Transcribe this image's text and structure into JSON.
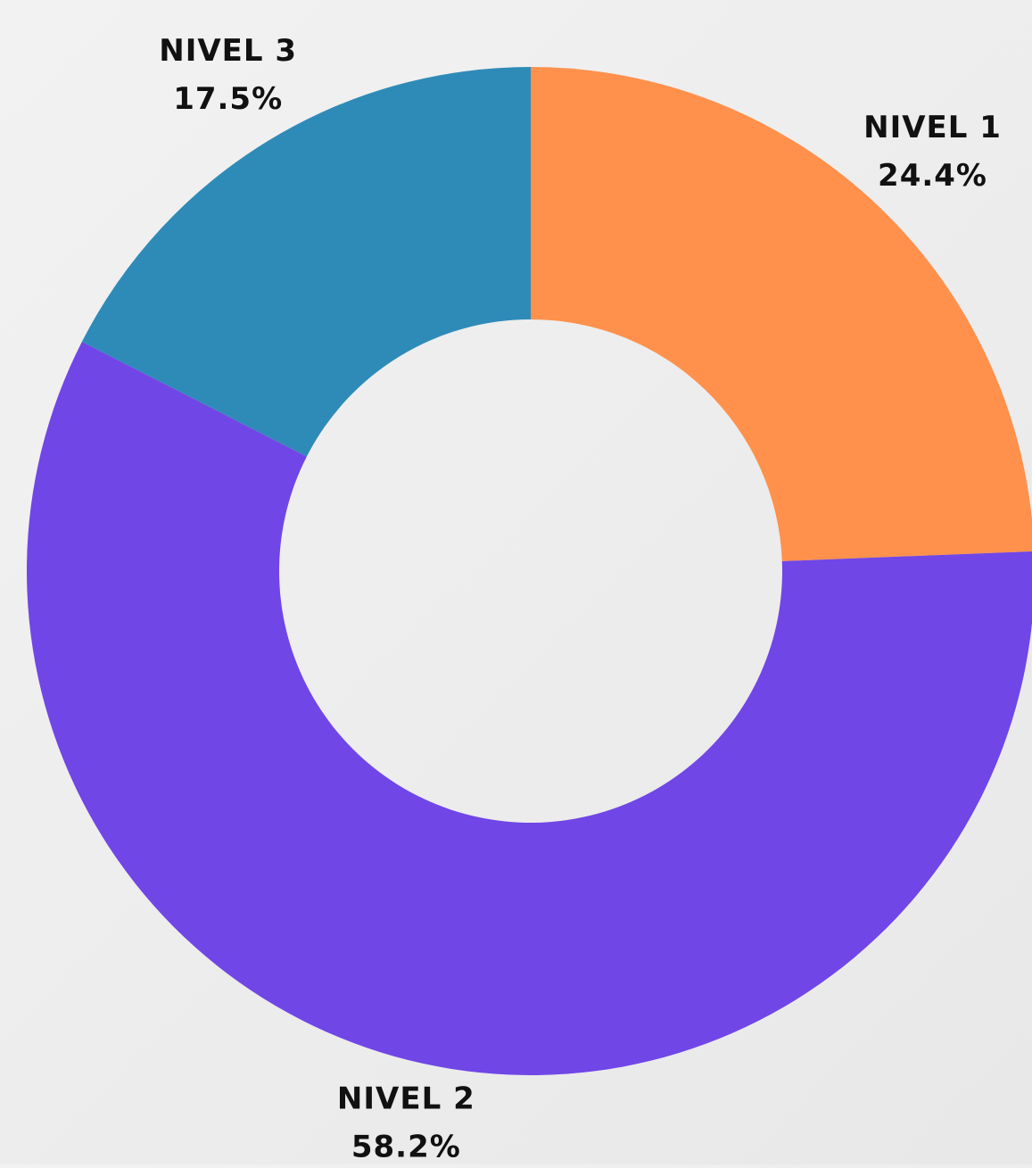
{
  "chart_data": {
    "type": "donut",
    "categories": [
      "NIVEL 1",
      "NIVEL 2",
      "NIVEL 3"
    ],
    "values": [
      24.4,
      58.2,
      17.5
    ],
    "value_labels": [
      "24.4%",
      "58.2%",
      "17.5%"
    ],
    "colors": [
      "#ff914d",
      "#7046e6",
      "#2e8bb8"
    ]
  }
}
